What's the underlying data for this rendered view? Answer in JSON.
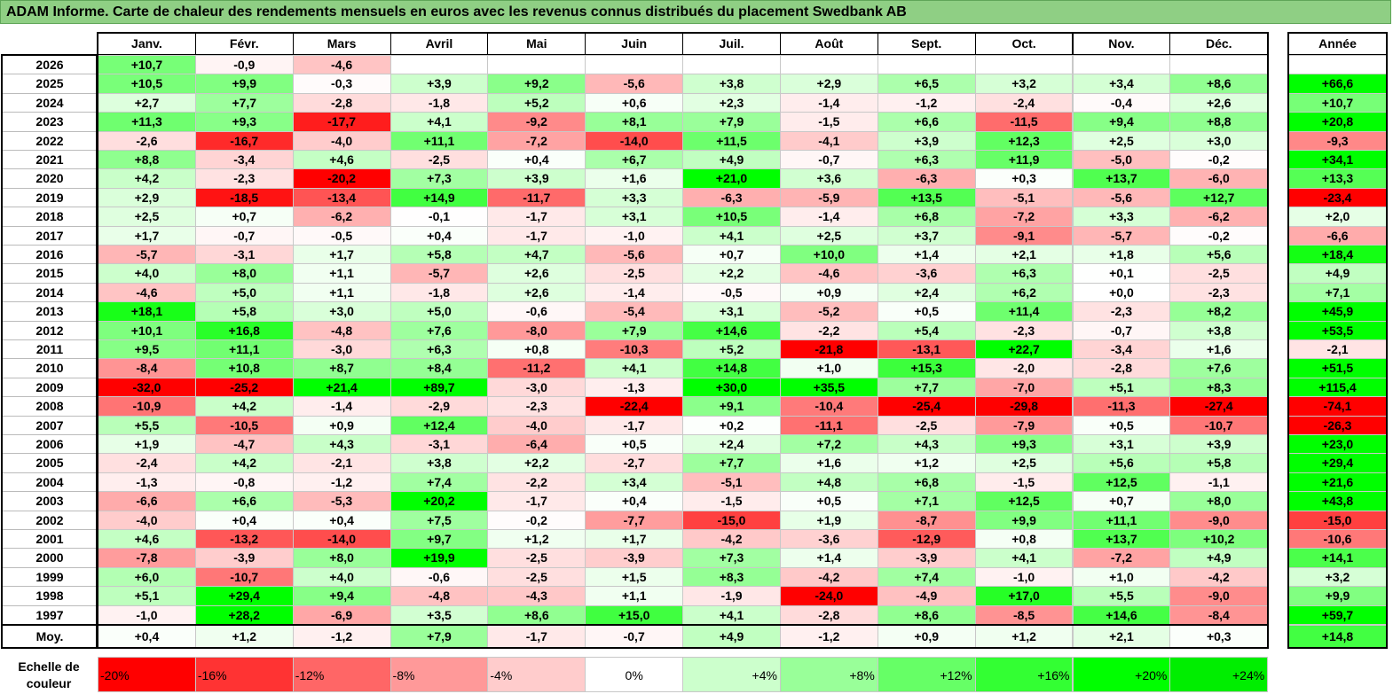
{
  "title": "ADAM Informe. Carte de chaleur des rendements mensuels en euros avec les revenus connus distribués du placement Swedbank AB",
  "chart_data": {
    "type": "heatmap",
    "months": [
      "Janv.",
      "Févr.",
      "Mars",
      "Avril",
      "Mai",
      "Juin",
      "Juil.",
      "Août",
      "Sept.",
      "Oct.",
      "Nov.",
      "Déc."
    ],
    "year_column_label": "Année",
    "rows": [
      {
        "year": "2026",
        "values": [
          "+10,7",
          "-0,9",
          "-4,6",
          "",
          "",
          "",
          "",
          "",
          "",
          "",
          "",
          ""
        ],
        "annual": ""
      },
      {
        "year": "2025",
        "values": [
          "+10,5",
          "+9,9",
          "-0,3",
          "+3,9",
          "+9,2",
          "-5,6",
          "+3,8",
          "+2,9",
          "+6,5",
          "+3,2",
          "+3,4",
          "+8,6"
        ],
        "annual": "+66,6"
      },
      {
        "year": "2024",
        "values": [
          "+2,7",
          "+7,7",
          "-2,8",
          "-1,8",
          "+5,2",
          "+0,6",
          "+2,3",
          "-1,4",
          "-1,2",
          "-2,4",
          "-0,4",
          "+2,6"
        ],
        "annual": "+10,7"
      },
      {
        "year": "2023",
        "values": [
          "+11,3",
          "+9,3",
          "-17,7",
          "+4,1",
          "-9,2",
          "+8,1",
          "+7,9",
          "-1,5",
          "+6,6",
          "-11,5",
          "+9,4",
          "+8,8"
        ],
        "annual": "+20,8"
      },
      {
        "year": "2022",
        "values": [
          "-2,6",
          "-16,7",
          "-4,0",
          "+11,1",
          "-7,2",
          "-14,0",
          "+11,5",
          "-4,1",
          "+3,9",
          "+12,3",
          "+2,5",
          "+3,0"
        ],
        "annual": "-9,3"
      },
      {
        "year": "2021",
        "values": [
          "+8,8",
          "-3,4",
          "+4,6",
          "-2,5",
          "+0,4",
          "+6,7",
          "+4,9",
          "-0,7",
          "+6,3",
          "+11,9",
          "-5,0",
          "-0,2"
        ],
        "annual": "+34,1"
      },
      {
        "year": "2020",
        "values": [
          "+4,2",
          "-2,3",
          "-20,2",
          "+7,3",
          "+3,9",
          "+1,6",
          "+21,0",
          "+3,6",
          "-6,3",
          "+0,3",
          "+13,7",
          "-6,0"
        ],
        "annual": "+13,3"
      },
      {
        "year": "2019",
        "values": [
          "+2,9",
          "-18,5",
          "-13,4",
          "+14,9",
          "-11,7",
          "+3,3",
          "-6,3",
          "-5,9",
          "+13,5",
          "-5,1",
          "-5,6",
          "+12,7"
        ],
        "annual": "-23,4"
      },
      {
        "year": "2018",
        "values": [
          "+2,5",
          "+0,7",
          "-6,2",
          "-0,1",
          "-1,7",
          "+3,1",
          "+10,5",
          "-1,4",
          "+6,8",
          "-7,2",
          "+3,3",
          "-6,2"
        ],
        "annual": "+2,0"
      },
      {
        "year": "2017",
        "values": [
          "+1,7",
          "-0,7",
          "-0,5",
          "+0,4",
          "-1,7",
          "-1,0",
          "+4,1",
          "+2,5",
          "+3,7",
          "-9,1",
          "-5,7",
          "-0,2"
        ],
        "annual": "-6,6"
      },
      {
        "year": "2016",
        "values": [
          "-5,7",
          "-3,1",
          "+1,7",
          "+5,8",
          "+4,7",
          "-5,6",
          "+0,7",
          "+10,0",
          "+1,4",
          "+2,1",
          "+1,8",
          "+5,6"
        ],
        "annual": "+18,4"
      },
      {
        "year": "2015",
        "values": [
          "+4,0",
          "+8,0",
          "+1,1",
          "-5,7",
          "+2,6",
          "-2,5",
          "+2,2",
          "-4,6",
          "-3,6",
          "+6,3",
          "+0,1",
          "-2,5"
        ],
        "annual": "+4,9"
      },
      {
        "year": "2014",
        "values": [
          "-4,6",
          "+5,0",
          "+1,1",
          "-1,8",
          "+2,6",
          "-1,4",
          "-0,5",
          "+0,9",
          "+2,4",
          "+6,2",
          "+0,0",
          "-2,3"
        ],
        "annual": "+7,1"
      },
      {
        "year": "2013",
        "values": [
          "+18,1",
          "+5,8",
          "+3,0",
          "+5,0",
          "-0,6",
          "-5,4",
          "+3,1",
          "-5,2",
          "+0,5",
          "+11,4",
          "-2,3",
          "+8,2"
        ],
        "annual": "+45,9"
      },
      {
        "year": "2012",
        "values": [
          "+10,1",
          "+16,8",
          "-4,8",
          "+7,6",
          "-8,0",
          "+7,9",
          "+14,6",
          "-2,2",
          "+5,4",
          "-2,3",
          "-0,7",
          "+3,8"
        ],
        "annual": "+53,5"
      },
      {
        "year": "2011",
        "values": [
          "+9,5",
          "+11,1",
          "-3,0",
          "+6,3",
          "+0,8",
          "-10,3",
          "+5,2",
          "-21,8",
          "-13,1",
          "+22,7",
          "-3,4",
          "+1,6"
        ],
        "annual": "-2,1"
      },
      {
        "year": "2010",
        "values": [
          "-8,4",
          "+10,8",
          "+8,7",
          "+8,4",
          "-11,2",
          "+4,1",
          "+14,8",
          "+1,0",
          "+15,3",
          "-2,0",
          "-2,8",
          "+7,6"
        ],
        "annual": "+51,5"
      },
      {
        "year": "2009",
        "values": [
          "-32,0",
          "-25,2",
          "+21,4",
          "+89,7",
          "-3,0",
          "-1,3",
          "+30,0",
          "+35,5",
          "+7,7",
          "-7,0",
          "+5,1",
          "+8,3"
        ],
        "annual": "+115,4"
      },
      {
        "year": "2008",
        "values": [
          "-10,9",
          "+4,2",
          "-1,4",
          "-2,9",
          "-2,3",
          "-22,4",
          "+9,1",
          "-10,4",
          "-25,4",
          "-29,8",
          "-11,3",
          "-27,4"
        ],
        "annual": "-74,1"
      },
      {
        "year": "2007",
        "values": [
          "+5,5",
          "-10,5",
          "+0,9",
          "+12,4",
          "-4,0",
          "-1,7",
          "+0,2",
          "-11,1",
          "-2,5",
          "-7,9",
          "+0,5",
          "-10,7"
        ],
        "annual": "-26,3"
      },
      {
        "year": "2006",
        "values": [
          "+1,9",
          "-4,7",
          "+4,3",
          "-3,1",
          "-6,4",
          "+0,5",
          "+2,4",
          "+7,2",
          "+4,3",
          "+9,3",
          "+3,1",
          "+3,9"
        ],
        "annual": "+23,0"
      },
      {
        "year": "2005",
        "values": [
          "-2,4",
          "+4,2",
          "-2,1",
          "+3,8",
          "+2,2",
          "-2,7",
          "+7,7",
          "+1,6",
          "+1,2",
          "+2,5",
          "+5,6",
          "+5,8"
        ],
        "annual": "+29,4"
      },
      {
        "year": "2004",
        "values": [
          "-1,3",
          "-0,8",
          "-1,2",
          "+7,4",
          "-2,2",
          "+3,4",
          "-5,1",
          "+4,8",
          "+6,8",
          "-1,5",
          "+12,5",
          "-1,1"
        ],
        "annual": "+21,6"
      },
      {
        "year": "2003",
        "values": [
          "-6,6",
          "+6,6",
          "-5,3",
          "+20,2",
          "-1,7",
          "+0,4",
          "-1,5",
          "+0,5",
          "+7,1",
          "+12,5",
          "+0,7",
          "+8,0"
        ],
        "annual": "+43,8"
      },
      {
        "year": "2002",
        "values": [
          "-4,0",
          "+0,4",
          "+0,4",
          "+7,5",
          "-0,2",
          "-7,7",
          "-15,0",
          "+1,9",
          "-8,7",
          "+9,9",
          "+11,1",
          "-9,0"
        ],
        "annual": "-15,0"
      },
      {
        "year": "2001",
        "values": [
          "+4,6",
          "-13,2",
          "-14,0",
          "+9,7",
          "+1,2",
          "+1,7",
          "-4,2",
          "-3,6",
          "-12,9",
          "+0,8",
          "+13,7",
          "+10,2"
        ],
        "annual": "-10,6"
      },
      {
        "year": "2000",
        "values": [
          "-7,8",
          "-3,9",
          "+8,0",
          "+19,9",
          "-2,5",
          "-3,9",
          "+7,3",
          "+1,4",
          "-3,9",
          "+4,1",
          "-7,2",
          "+4,9"
        ],
        "annual": "+14,1"
      },
      {
        "year": "1999",
        "values": [
          "+6,0",
          "-10,7",
          "+4,0",
          "-0,6",
          "-2,5",
          "+1,5",
          "+8,3",
          "-4,2",
          "+7,4",
          "-1,0",
          "+1,0",
          "-4,2"
        ],
        "annual": "+3,2"
      },
      {
        "year": "1998",
        "values": [
          "+5,1",
          "+29,4",
          "+9,4",
          "-4,8",
          "-4,3",
          "+1,1",
          "-1,9",
          "-24,0",
          "-4,9",
          "+17,0",
          "+5,5",
          "-9,0"
        ],
        "annual": "+9,9"
      },
      {
        "year": "1997",
        "values": [
          "-1,0",
          "+28,2",
          "-6,9",
          "+3,5",
          "+8,6",
          "+15,0",
          "+4,1",
          "-2,8",
          "+8,6",
          "-8,5",
          "+14,6",
          "-8,4"
        ],
        "annual": "+59,7"
      }
    ],
    "average": {
      "label": "Moy.",
      "values": [
        "+0,4",
        "+1,2",
        "-1,2",
        "+7,9",
        "-1,7",
        "-0,7",
        "+4,9",
        "-1,2",
        "+0,9",
        "+1,2",
        "+2,1",
        "+0,3"
      ],
      "annual": "+14,8"
    },
    "color_scale": {
      "label": "Echelle de couleur",
      "stops": [
        "-20%",
        "-16%",
        "-12%",
        "-8%",
        "-4%",
        "0%",
        "+4%",
        "+8%",
        "+12%",
        "+16%",
        "+20%",
        "+24%"
      ],
      "stop_colors": [
        "#ff0000",
        "#ff3333",
        "#ff6666",
        "#ff9999",
        "#ffcccc",
        "#ffffff",
        "#ccffcc",
        "#99ff99",
        "#66ff66",
        "#33ff33",
        "#00ff00",
        "#00ee00"
      ]
    }
  }
}
